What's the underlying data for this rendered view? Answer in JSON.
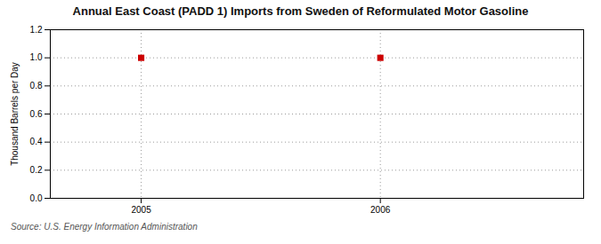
{
  "chart_data": {
    "type": "scatter",
    "title": "Annual East Coast (PADD 1) Imports from Sweden of Reformulated Motor Gasoline",
    "ylabel": "Thousand Barrels per Day",
    "source": "Source: U.S. Energy Information Administration",
    "x": [
      2005,
      2006
    ],
    "values": [
      1.0,
      1.0
    ],
    "color": "#cc0000",
    "marker": "square",
    "xlim": [
      2004.62,
      2006.85
    ],
    "ylim": [
      0.0,
      1.2
    ],
    "xticks": [
      2005,
      2006
    ],
    "yticks": [
      {
        "value": 0.0,
        "label": "0.0"
      },
      0.2,
      0.4,
      0.6,
      0.8,
      {
        "value": 1.0,
        "label": "1.0"
      },
      1.2
    ],
    "grid": true
  }
}
